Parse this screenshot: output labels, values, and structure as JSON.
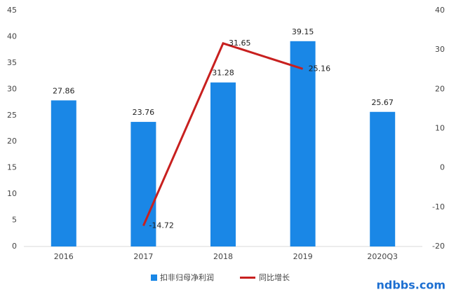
{
  "chart_data": {
    "type": "bar_line",
    "categories": [
      "2016",
      "2017",
      "2018",
      "2019",
      "2020Q3"
    ],
    "series": [
      {
        "name": "扣非归母净利润",
        "color": "#1a87e6",
        "type": "bar",
        "values": [
          27.86,
          23.76,
          31.28,
          39.15,
          25.67
        ]
      },
      {
        "name": "同比增长",
        "color": "#c8201f",
        "type": "line",
        "axis": "y2",
        "values": [
          null,
          -14.72,
          31.65,
          25.16,
          null
        ]
      }
    ],
    "ylim": [
      0,
      45
    ],
    "yticks": [
      0,
      5,
      10,
      15,
      20,
      25,
      30,
      35,
      40,
      45
    ],
    "y2lim": [
      -20,
      40
    ],
    "y2ticks": [
      -20,
      -10,
      0,
      10,
      20,
      30,
      40
    ],
    "grid": false,
    "legend": "bottom",
    "watermark": "ndbbs.com"
  }
}
